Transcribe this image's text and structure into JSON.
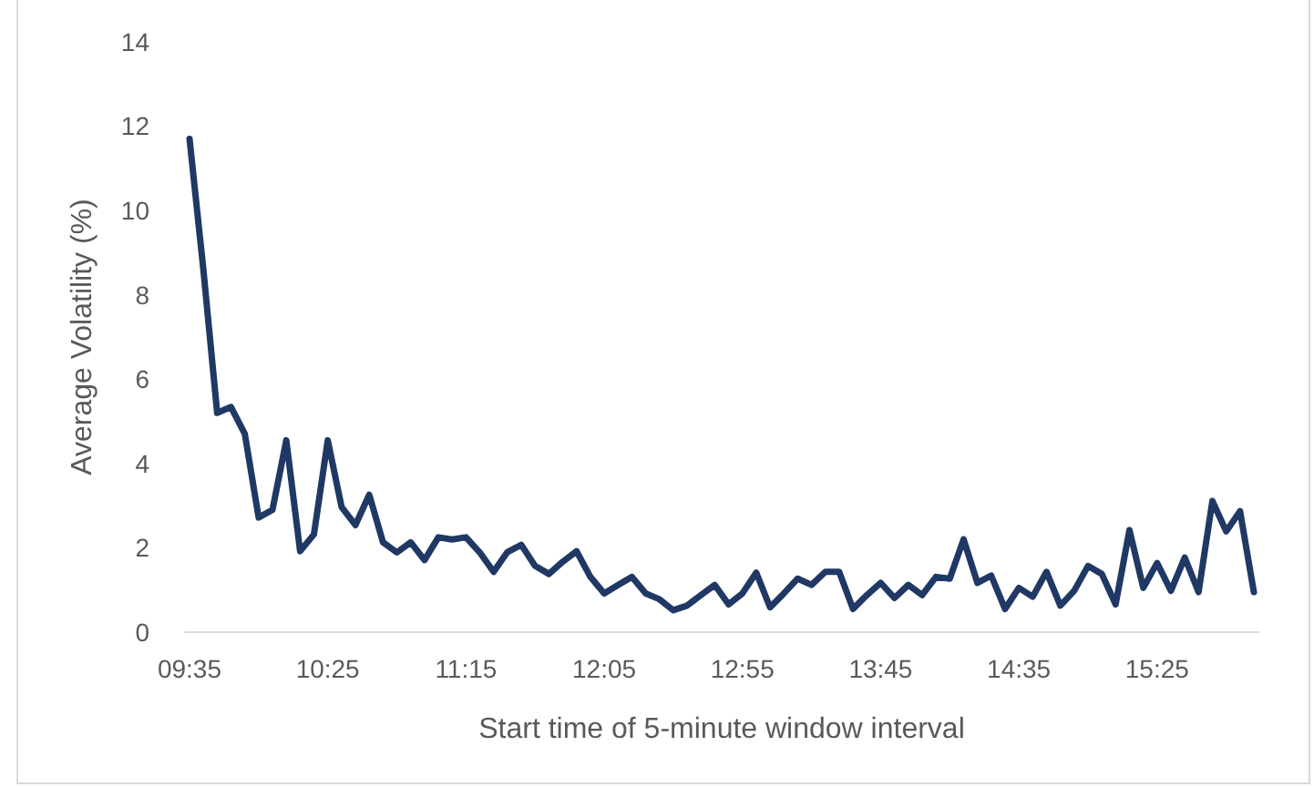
{
  "chart_data": {
    "type": "line",
    "xlabel": "Start time of 5-minute window interval",
    "ylabel": "Average Volatility (%)",
    "categories": [
      "09:35",
      null,
      null,
      null,
      null,
      null,
      null,
      null,
      null,
      null,
      "10:25",
      null,
      null,
      null,
      null,
      null,
      null,
      null,
      null,
      null,
      "11:15",
      null,
      null,
      null,
      null,
      null,
      null,
      null,
      null,
      null,
      "12:05",
      null,
      null,
      null,
      null,
      null,
      null,
      null,
      null,
      null,
      "12:55",
      null,
      null,
      null,
      null,
      null,
      null,
      null,
      null,
      null,
      "13:45",
      null,
      null,
      null,
      null,
      null,
      null,
      null,
      null,
      null,
      "14:35",
      null,
      null,
      null,
      null,
      null,
      null,
      null,
      null,
      null,
      "15:25",
      null,
      null,
      null,
      null,
      null,
      null,
      null
    ],
    "series": [
      {
        "color": "#203864",
        "values": [
          11.7,
          8.6,
          5.2,
          5.34,
          4.7,
          2.72,
          2.9,
          4.55,
          1.92,
          2.32,
          4.55,
          2.97,
          2.54,
          3.26,
          2.13,
          1.89,
          2.13,
          1.71,
          2.25,
          2.2,
          2.25,
          1.89,
          1.43,
          1.9,
          2.07,
          1.57,
          1.38,
          1.67,
          1.92,
          1.31,
          0.92,
          1.12,
          1.31,
          0.92,
          0.78,
          0.52,
          0.63,
          0.88,
          1.12,
          0.66,
          0.92,
          1.41,
          0.59,
          0.92,
          1.27,
          1.12,
          1.43,
          1.43,
          0.55,
          0.88,
          1.17,
          0.81,
          1.12,
          0.88,
          1.31,
          1.27,
          2.2,
          1.17,
          1.34,
          0.55,
          1.05,
          0.84,
          1.43,
          0.63,
          0.98,
          1.57,
          1.38,
          0.66,
          2.42,
          1.05,
          1.64,
          0.98,
          1.77,
          0.95,
          3.11,
          2.39,
          2.87,
          0.95
        ]
      }
    ],
    "ylim": [
      0,
      14
    ],
    "yticks": [
      0,
      2,
      4,
      6,
      8,
      10,
      12,
      14
    ],
    "grid": false,
    "marker": "none",
    "line_style": "solid"
  }
}
